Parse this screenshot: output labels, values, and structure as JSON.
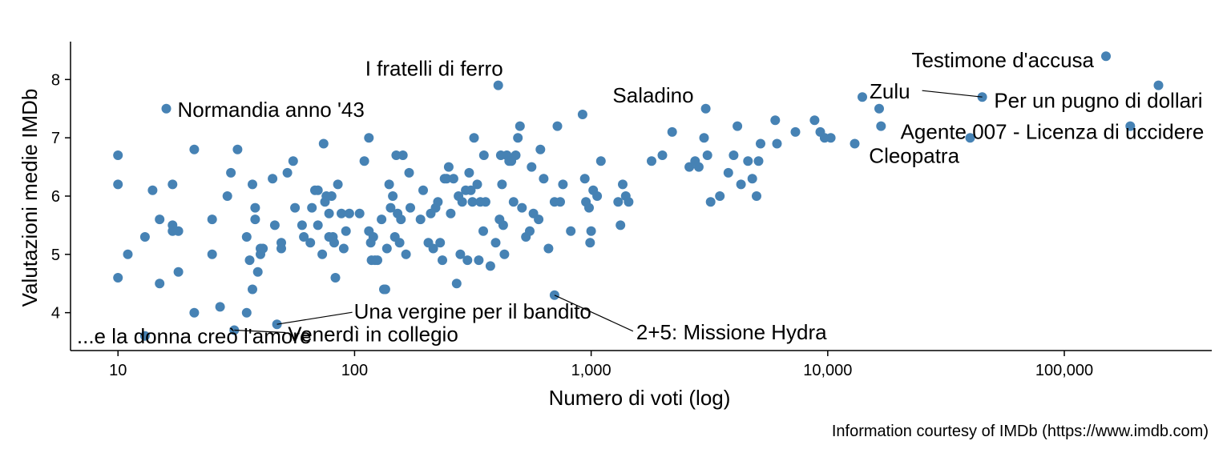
{
  "chart_data": {
    "type": "scatter",
    "x_scale": "log10",
    "xlabel": "Numero di voti (log)",
    "ylabel": "Valutazioni medie IMDb",
    "caption": "Information courtesy of IMDb (https://www.imdb.com)",
    "xlim": [
      6.3,
      420000
    ],
    "ylim": [
      3.35,
      8.65
    ],
    "x_ticks": [
      10,
      100,
      1000,
      10000,
      100000
    ],
    "x_tick_labels": [
      "10",
      "100",
      "1,000",
      "10,000",
      "100,000"
    ],
    "y_ticks": [
      4,
      5,
      6,
      7,
      8
    ],
    "y_tick_labels": [
      "4",
      "5",
      "6",
      "7",
      "8"
    ],
    "grid": false,
    "point_color": "#4682B4",
    "points": [
      {
        "x": 10,
        "y": 6.7
      },
      {
        "x": 10,
        "y": 6.2
      },
      {
        "x": 10,
        "y": 4.6
      },
      {
        "x": 11,
        "y": 5.0
      },
      {
        "x": 13,
        "y": 5.3
      },
      {
        "x": 13,
        "y": 3.6
      },
      {
        "x": 14,
        "y": 6.1
      },
      {
        "x": 15,
        "y": 5.6
      },
      {
        "x": 15,
        "y": 4.5
      },
      {
        "x": 16,
        "y": 7.5
      },
      {
        "x": 17,
        "y": 6.2
      },
      {
        "x": 17,
        "y": 5.5
      },
      {
        "x": 17,
        "y": 5.4
      },
      {
        "x": 18,
        "y": 5.4
      },
      {
        "x": 18,
        "y": 4.7
      },
      {
        "x": 21,
        "y": 6.8
      },
      {
        "x": 21,
        "y": 4.0
      },
      {
        "x": 25,
        "y": 5.6
      },
      {
        "x": 25,
        "y": 5.0
      },
      {
        "x": 27,
        "y": 4.1
      },
      {
        "x": 29,
        "y": 6.0
      },
      {
        "x": 30,
        "y": 6.4
      },
      {
        "x": 31,
        "y": 3.7
      },
      {
        "x": 32,
        "y": 6.8
      },
      {
        "x": 35,
        "y": 5.3
      },
      {
        "x": 35,
        "y": 4.0
      },
      {
        "x": 36,
        "y": 4.9
      },
      {
        "x": 37,
        "y": 6.2
      },
      {
        "x": 37,
        "y": 4.4
      },
      {
        "x": 38,
        "y": 5.6
      },
      {
        "x": 38,
        "y": 5.8
      },
      {
        "x": 39,
        "y": 4.7
      },
      {
        "x": 40,
        "y": 5.1
      },
      {
        "x": 40,
        "y": 5.0
      },
      {
        "x": 41,
        "y": 5.1
      },
      {
        "x": 45,
        "y": 6.3
      },
      {
        "x": 46,
        "y": 5.5
      },
      {
        "x": 47,
        "y": 3.8
      },
      {
        "x": 49,
        "y": 5.2
      },
      {
        "x": 49,
        "y": 5.1
      },
      {
        "x": 52,
        "y": 6.4
      },
      {
        "x": 55,
        "y": 6.6
      },
      {
        "x": 56,
        "y": 5.8
      },
      {
        "x": 60,
        "y": 5.5
      },
      {
        "x": 61,
        "y": 5.3
      },
      {
        "x": 65,
        "y": 5.2
      },
      {
        "x": 66,
        "y": 5.8
      },
      {
        "x": 68,
        "y": 6.1
      },
      {
        "x": 70,
        "y": 6.1
      },
      {
        "x": 70,
        "y": 5.5
      },
      {
        "x": 73,
        "y": 5.0
      },
      {
        "x": 74,
        "y": 6.9
      },
      {
        "x": 75,
        "y": 5.9
      },
      {
        "x": 76,
        "y": 6.0
      },
      {
        "x": 78,
        "y": 5.3
      },
      {
        "x": 78,
        "y": 5.7
      },
      {
        "x": 80,
        "y": 6.0
      },
      {
        "x": 81,
        "y": 5.3
      },
      {
        "x": 82,
        "y": 5.2
      },
      {
        "x": 83,
        "y": 4.6
      },
      {
        "x": 85,
        "y": 6.2
      },
      {
        "x": 88,
        "y": 5.7
      },
      {
        "x": 90,
        "y": 5.1
      },
      {
        "x": 92,
        "y": 5.4
      },
      {
        "x": 95,
        "y": 5.7
      },
      {
        "x": 105,
        "y": 5.7
      },
      {
        "x": 110,
        "y": 6.6
      },
      {
        "x": 115,
        "y": 7.0
      },
      {
        "x": 115,
        "y": 5.4
      },
      {
        "x": 117,
        "y": 5.2
      },
      {
        "x": 118,
        "y": 4.9
      },
      {
        "x": 120,
        "y": 5.3
      },
      {
        "x": 122,
        "y": 4.9
      },
      {
        "x": 125,
        "y": 4.9
      },
      {
        "x": 130,
        "y": 5.6
      },
      {
        "x": 133,
        "y": 4.4
      },
      {
        "x": 135,
        "y": 4.4
      },
      {
        "x": 137,
        "y": 5.1
      },
      {
        "x": 140,
        "y": 6.2
      },
      {
        "x": 142,
        "y": 5.8
      },
      {
        "x": 145,
        "y": 6.0
      },
      {
        "x": 148,
        "y": 5.3
      },
      {
        "x": 150,
        "y": 6.7
      },
      {
        "x": 152,
        "y": 5.7
      },
      {
        "x": 155,
        "y": 5.2
      },
      {
        "x": 157,
        "y": 5.6
      },
      {
        "x": 160,
        "y": 6.7
      },
      {
        "x": 165,
        "y": 5.0
      },
      {
        "x": 170,
        "y": 6.4
      },
      {
        "x": 172,
        "y": 5.8
      },
      {
        "x": 190,
        "y": 5.6
      },
      {
        "x": 195,
        "y": 6.1
      },
      {
        "x": 205,
        "y": 5.2
      },
      {
        "x": 210,
        "y": 5.7
      },
      {
        "x": 215,
        "y": 5.1
      },
      {
        "x": 220,
        "y": 5.8
      },
      {
        "x": 225,
        "y": 5.9
      },
      {
        "x": 230,
        "y": 5.2
      },
      {
        "x": 235,
        "y": 4.9
      },
      {
        "x": 240,
        "y": 6.3
      },
      {
        "x": 245,
        "y": 6.3
      },
      {
        "x": 250,
        "y": 6.5
      },
      {
        "x": 255,
        "y": 5.7
      },
      {
        "x": 262,
        "y": 6.3
      },
      {
        "x": 270,
        "y": 4.5
      },
      {
        "x": 275,
        "y": 6.0
      },
      {
        "x": 280,
        "y": 5.0
      },
      {
        "x": 285,
        "y": 5.9
      },
      {
        "x": 295,
        "y": 6.1
      },
      {
        "x": 300,
        "y": 4.9
      },
      {
        "x": 305,
        "y": 6.4
      },
      {
        "x": 310,
        "y": 6.1
      },
      {
        "x": 315,
        "y": 5.9
      },
      {
        "x": 320,
        "y": 7.0
      },
      {
        "x": 330,
        "y": 6.2
      },
      {
        "x": 335,
        "y": 4.9
      },
      {
        "x": 340,
        "y": 5.9
      },
      {
        "x": 350,
        "y": 5.4
      },
      {
        "x": 352,
        "y": 6.7
      },
      {
        "x": 358,
        "y": 5.9
      },
      {
        "x": 375,
        "y": 4.8
      },
      {
        "x": 395,
        "y": 5.2
      },
      {
        "x": 405,
        "y": 7.9
      },
      {
        "x": 410,
        "y": 5.6
      },
      {
        "x": 415,
        "y": 6.7
      },
      {
        "x": 420,
        "y": 6.2
      },
      {
        "x": 425,
        "y": 5.5
      },
      {
        "x": 430,
        "y": 5.0
      },
      {
        "x": 440,
        "y": 6.7
      },
      {
        "x": 450,
        "y": 6.6
      },
      {
        "x": 460,
        "y": 6.6
      },
      {
        "x": 470,
        "y": 5.9
      },
      {
        "x": 480,
        "y": 6.7
      },
      {
        "x": 490,
        "y": 7.0
      },
      {
        "x": 500,
        "y": 7.2
      },
      {
        "x": 510,
        "y": 5.8
      },
      {
        "x": 530,
        "y": 5.3
      },
      {
        "x": 550,
        "y": 5.4
      },
      {
        "x": 560,
        "y": 6.5
      },
      {
        "x": 570,
        "y": 5.7
      },
      {
        "x": 600,
        "y": 5.6
      },
      {
        "x": 610,
        "y": 6.8
      },
      {
        "x": 630,
        "y": 6.3
      },
      {
        "x": 660,
        "y": 5.1
      },
      {
        "x": 700,
        "y": 5.9
      },
      {
        "x": 700,
        "y": 4.3
      },
      {
        "x": 720,
        "y": 7.2
      },
      {
        "x": 740,
        "y": 5.9
      },
      {
        "x": 760,
        "y": 6.2
      },
      {
        "x": 820,
        "y": 5.4
      },
      {
        "x": 920,
        "y": 7.4
      },
      {
        "x": 940,
        "y": 6.3
      },
      {
        "x": 950,
        "y": 5.9
      },
      {
        "x": 980,
        "y": 5.8
      },
      {
        "x": 990,
        "y": 5.2
      },
      {
        "x": 1000,
        "y": 5.4
      },
      {
        "x": 1020,
        "y": 6.1
      },
      {
        "x": 1060,
        "y": 6.0
      },
      {
        "x": 1100,
        "y": 6.6
      },
      {
        "x": 1300,
        "y": 5.9
      },
      {
        "x": 1330,
        "y": 5.5
      },
      {
        "x": 1360,
        "y": 6.2
      },
      {
        "x": 1400,
        "y": 6.0
      },
      {
        "x": 1440,
        "y": 5.9
      },
      {
        "x": 1800,
        "y": 6.6
      },
      {
        "x": 2000,
        "y": 6.7
      },
      {
        "x": 2200,
        "y": 7.1
      },
      {
        "x": 2600,
        "y": 6.5
      },
      {
        "x": 2750,
        "y": 6.6
      },
      {
        "x": 2850,
        "y": 6.5
      },
      {
        "x": 3000,
        "y": 7.0
      },
      {
        "x": 3050,
        "y": 7.5
      },
      {
        "x": 3100,
        "y": 6.7
      },
      {
        "x": 3200,
        "y": 5.9
      },
      {
        "x": 3500,
        "y": 6.0
      },
      {
        "x": 3800,
        "y": 6.4
      },
      {
        "x": 4000,
        "y": 6.7
      },
      {
        "x": 4150,
        "y": 7.2
      },
      {
        "x": 4300,
        "y": 6.2
      },
      {
        "x": 4600,
        "y": 6.6
      },
      {
        "x": 4800,
        "y": 6.3
      },
      {
        "x": 5000,
        "y": 6.0
      },
      {
        "x": 5100,
        "y": 6.6
      },
      {
        "x": 5200,
        "y": 6.9
      },
      {
        "x": 6000,
        "y": 7.3
      },
      {
        "x": 6100,
        "y": 6.9
      },
      {
        "x": 7300,
        "y": 7.1
      },
      {
        "x": 8800,
        "y": 7.3
      },
      {
        "x": 9300,
        "y": 7.1
      },
      {
        "x": 9700,
        "y": 7.0
      },
      {
        "x": 10300,
        "y": 7.0
      },
      {
        "x": 13000,
        "y": 6.9
      },
      {
        "x": 14000,
        "y": 7.7
      },
      {
        "x": 16500,
        "y": 7.5
      },
      {
        "x": 16800,
        "y": 7.2
      },
      {
        "x": 40000,
        "y": 7.0
      },
      {
        "x": 45000,
        "y": 7.7
      },
      {
        "x": 150000,
        "y": 8.4
      },
      {
        "x": 190000,
        "y": 7.2
      },
      {
        "x": 250000,
        "y": 7.9
      }
    ],
    "labels": [
      {
        "text": "Testimone d'accusa",
        "x": 150000,
        "y": 8.4
      },
      {
        "text": "Per un pugno di dollari",
        "x": 250000,
        "y": 7.9
      },
      {
        "text": "I fratelli di ferro",
        "x": 405,
        "y": 7.9
      },
      {
        "text": "Zulu",
        "x": 45000,
        "y": 7.7
      },
      {
        "text": "Normandia anno '43",
        "x": 16,
        "y": 7.5
      },
      {
        "text": "Saladino",
        "x": 3050,
        "y": 7.5
      },
      {
        "text": "Agente 007 - Licenza di uccidere",
        "x": 190000,
        "y": 7.2
      },
      {
        "text": "Cleopatra",
        "x": 16800,
        "y": 7.2
      },
      {
        "text": "Una vergine per il bandito",
        "x": 47,
        "y": 3.8
      },
      {
        "text": "2+5: Missione Hydra",
        "x": 700,
        "y": 4.3
      },
      {
        "text": "...e la donna creò l'amore",
        "x": 13,
        "y": 3.6
      },
      {
        "text": "Venerdì in collegio",
        "x": 31,
        "y": 3.7
      }
    ]
  }
}
